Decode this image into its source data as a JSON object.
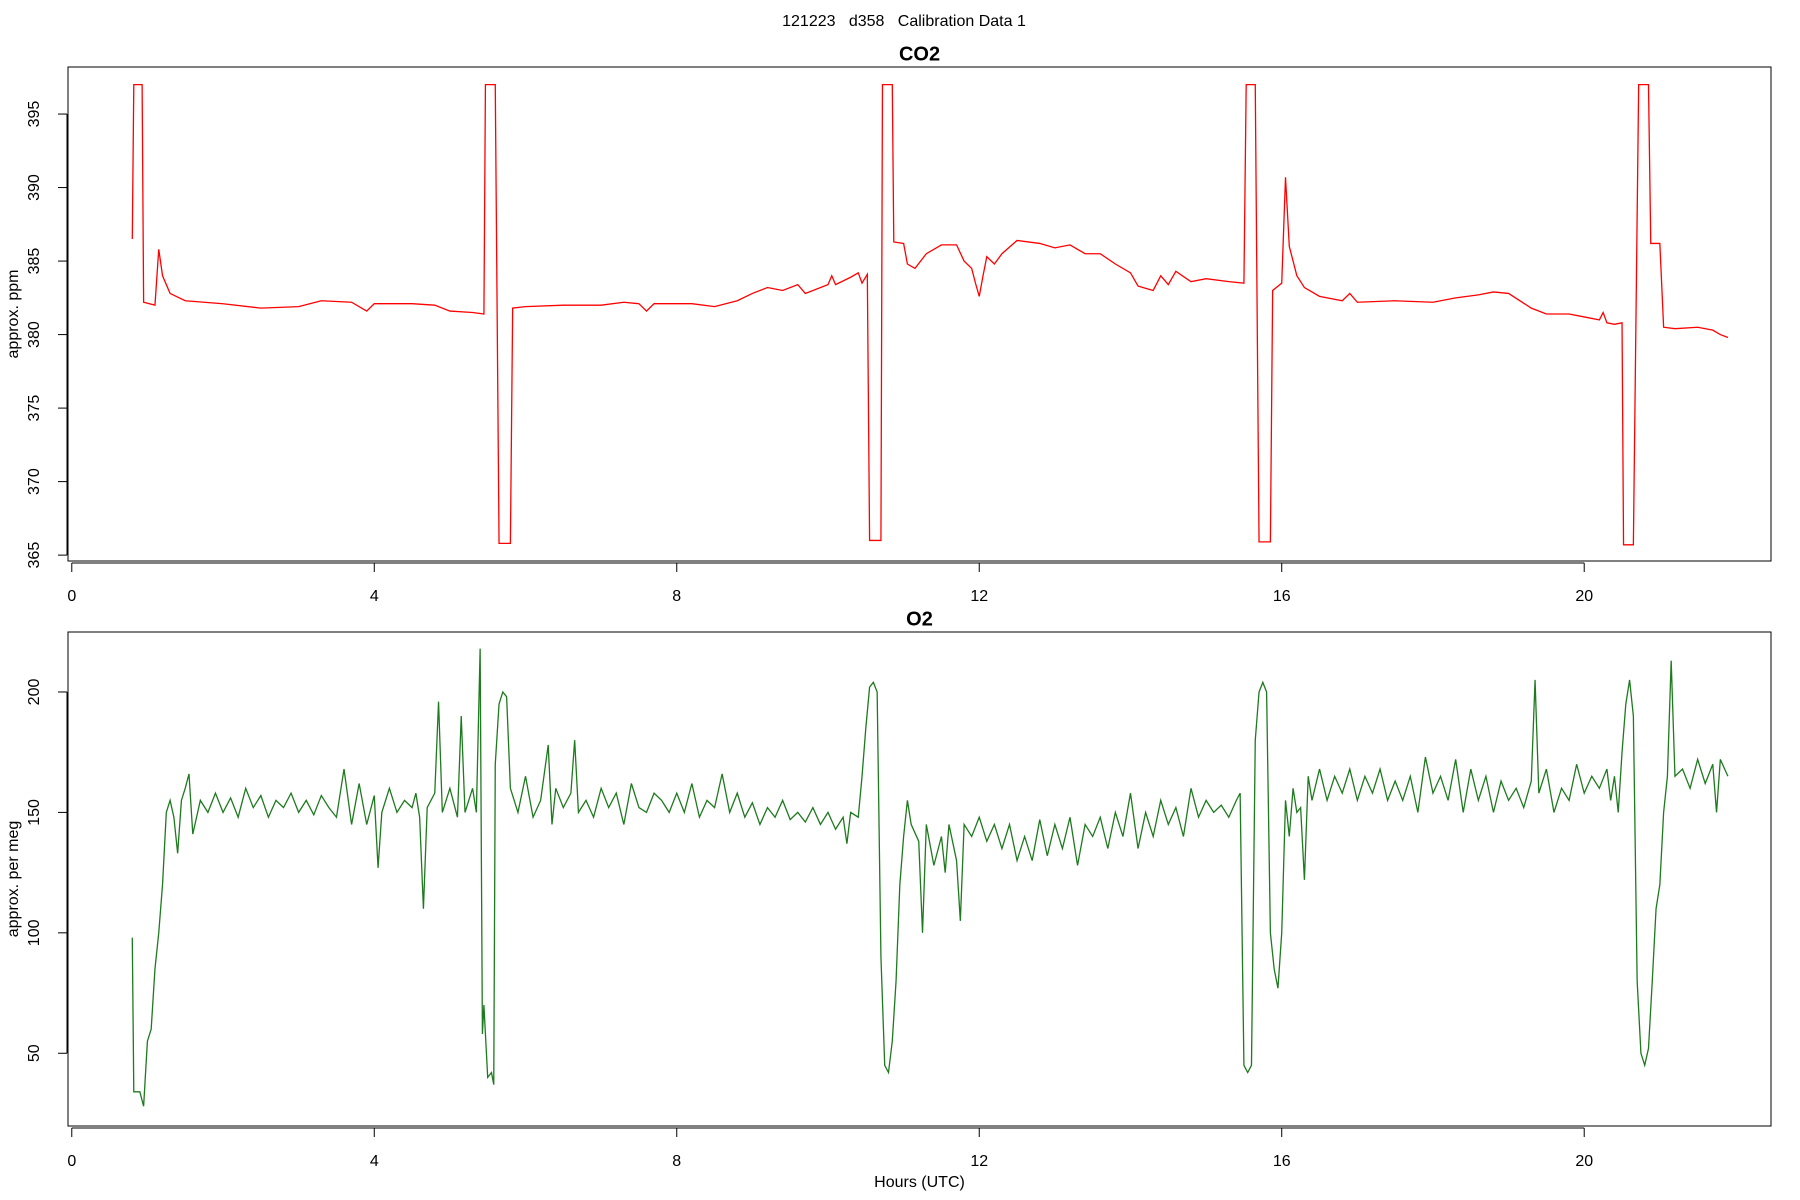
{
  "title": "121223   d358   Calibration Data 1",
  "chart_data": [
    {
      "type": "line",
      "title": "CO2",
      "ylabel": "approx. ppm",
      "color": "#ff0000",
      "xlim": [
        -0.05,
        22.47
      ],
      "ylim": [
        364.6,
        398.2
      ],
      "xticks": [
        0,
        4,
        8,
        12,
        16,
        20
      ],
      "yticks": [
        365,
        370,
        375,
        380,
        385,
        390,
        395
      ],
      "x": [
        0.8,
        0.82,
        0.93,
        0.95,
        1.1,
        1.15,
        1.2,
        1.3,
        1.5,
        2,
        2.5,
        3,
        3.3,
        3.7,
        3.9,
        4,
        4.5,
        4.8,
        5,
        5.3,
        5.45,
        5.47,
        5.6,
        5.65,
        5.8,
        5.83,
        6,
        6.5,
        7,
        7.3,
        7.5,
        7.6,
        7.7,
        8.2,
        8.5,
        8.8,
        9,
        9.2,
        9.4,
        9.6,
        9.7,
        10,
        10.05,
        10.1,
        10.3,
        10.4,
        10.45,
        10.52,
        10.55,
        10.7,
        10.72,
        10.85,
        10.87,
        11,
        11.05,
        11.15,
        11.3,
        11.5,
        11.7,
        11.8,
        11.9,
        11.95,
        12,
        12.05,
        12.1,
        12.2,
        12.3,
        12.5,
        12.8,
        13,
        13.2,
        13.4,
        13.6,
        13.8,
        14,
        14.1,
        14.3,
        14.4,
        14.5,
        14.6,
        14.8,
        15,
        15.3,
        15.5,
        15.53,
        15.65,
        15.7,
        15.85,
        15.88,
        16,
        16.05,
        16.1,
        16.2,
        16.3,
        16.5,
        16.8,
        16.9,
        17,
        17.5,
        18,
        18.3,
        18.6,
        18.8,
        19,
        19.3,
        19.5,
        19.8,
        20,
        20.2,
        20.25,
        20.3,
        20.4,
        20.5,
        20.52,
        20.65,
        20.72,
        20.85,
        20.88,
        21,
        21.05,
        21.2,
        21.5,
        21.7,
        21.8,
        21.9
      ],
      "values": [
        386.5,
        397,
        397,
        382.2,
        382,
        385.8,
        384,
        382.8,
        382.3,
        382.1,
        381.8,
        381.9,
        382.3,
        382.2,
        381.6,
        382.1,
        382.1,
        382,
        381.6,
        381.5,
        381.4,
        397,
        397,
        365.8,
        365.8,
        381.8,
        381.9,
        382,
        382,
        382.2,
        382.1,
        381.6,
        382.1,
        382.1,
        381.9,
        382.3,
        382.8,
        383.2,
        383,
        383.4,
        382.8,
        383.4,
        384,
        383.4,
        383.9,
        384.2,
        383.5,
        384.1,
        366,
        366,
        397,
        397,
        386.3,
        386.2,
        384.8,
        384.5,
        385.5,
        386.1,
        386.1,
        385,
        384.5,
        383.5,
        382.6,
        384,
        385.3,
        384.8,
        385.5,
        386.4,
        386.2,
        385.9,
        386.1,
        385.5,
        385.5,
        384.8,
        384.2,
        383.3,
        383,
        384,
        383.4,
        384.3,
        383.6,
        383.8,
        383.6,
        383.5,
        397,
        397,
        365.9,
        365.9,
        383,
        383.5,
        390.7,
        386,
        384,
        383.2,
        382.6,
        382.3,
        382.8,
        382.2,
        382.3,
        382.2,
        382.5,
        382.7,
        382.9,
        382.8,
        381.8,
        381.4,
        381.4,
        381.2,
        381,
        381.5,
        380.8,
        380.7,
        380.8,
        365.7,
        365.7,
        397,
        397,
        386.2,
        386.2,
        380.5,
        380.4,
        380.5,
        380.3,
        380,
        379.8
      ]
    },
    {
      "type": "line",
      "title": "O2",
      "ylabel": "approx. per meg",
      "xlabel": "Hours (UTC)",
      "color": "#1e7a1e",
      "xlim": [
        -0.05,
        22.47
      ],
      "ylim": [
        19.8,
        224.9
      ],
      "xticks": [
        0,
        4,
        8,
        12,
        16,
        20
      ],
      "yticks": [
        50,
        100,
        150,
        200
      ],
      "x": [
        0.8,
        0.82,
        0.9,
        0.95,
        1.0,
        1.05,
        1.1,
        1.15,
        1.2,
        1.25,
        1.3,
        1.35,
        1.4,
        1.45,
        1.5,
        1.55,
        1.6,
        1.7,
        1.8,
        1.9,
        2.0,
        2.1,
        2.2,
        2.3,
        2.4,
        2.5,
        2.6,
        2.7,
        2.8,
        2.9,
        3.0,
        3.1,
        3.2,
        3.3,
        3.4,
        3.5,
        3.6,
        3.7,
        3.8,
        3.9,
        4.0,
        4.05,
        4.1,
        4.2,
        4.3,
        4.4,
        4.5,
        4.55,
        4.6,
        4.65,
        4.7,
        4.8,
        4.85,
        4.9,
        5.0,
        5.1,
        5.15,
        5.2,
        5.3,
        5.35,
        5.4,
        5.43,
        5.45,
        5.5,
        5.55,
        5.58,
        5.6,
        5.65,
        5.7,
        5.75,
        5.8,
        5.9,
        6.0,
        6.1,
        6.2,
        6.3,
        6.35,
        6.4,
        6.5,
        6.6,
        6.65,
        6.7,
        6.8,
        6.9,
        7.0,
        7.1,
        7.2,
        7.3,
        7.4,
        7.5,
        7.6,
        7.7,
        7.8,
        7.9,
        8.0,
        8.1,
        8.2,
        8.3,
        8.4,
        8.5,
        8.6,
        8.7,
        8.8,
        8.9,
        9.0,
        9.1,
        9.2,
        9.3,
        9.4,
        9.5,
        9.6,
        9.7,
        9.8,
        9.9,
        10.0,
        10.1,
        10.2,
        10.25,
        10.3,
        10.4,
        10.45,
        10.5,
        10.55,
        10.6,
        10.65,
        10.7,
        10.75,
        10.8,
        10.85,
        10.9,
        10.95,
        11.0,
        11.05,
        11.1,
        11.2,
        11.25,
        11.3,
        11.4,
        11.5,
        11.55,
        11.6,
        11.7,
        11.75,
        11.8,
        11.9,
        12.0,
        12.1,
        12.2,
        12.3,
        12.4,
        12.5,
        12.6,
        12.7,
        12.8,
        12.9,
        13.0,
        13.1,
        13.2,
        13.3,
        13.4,
        13.5,
        13.6,
        13.7,
        13.8,
        13.9,
        14.0,
        14.1,
        14.2,
        14.3,
        14.4,
        14.5,
        14.6,
        14.7,
        14.8,
        14.9,
        15.0,
        15.1,
        15.2,
        15.3,
        15.4,
        15.45,
        15.5,
        15.55,
        15.6,
        15.65,
        15.7,
        15.75,
        15.8,
        15.85,
        15.9,
        15.95,
        16.0,
        16.05,
        16.1,
        16.15,
        16.2,
        16.25,
        16.3,
        16.35,
        16.4,
        16.5,
        16.6,
        16.7,
        16.8,
        16.9,
        17.0,
        17.1,
        17.2,
        17.3,
        17.4,
        17.5,
        17.6,
        17.7,
        17.8,
        17.9,
        18.0,
        18.1,
        18.2,
        18.3,
        18.4,
        18.5,
        18.6,
        18.7,
        18.8,
        18.9,
        19.0,
        19.1,
        19.2,
        19.3,
        19.35,
        19.4,
        19.5,
        19.6,
        19.7,
        19.8,
        19.9,
        20.0,
        20.1,
        20.2,
        20.3,
        20.35,
        20.4,
        20.45,
        20.5,
        20.55,
        20.6,
        20.65,
        20.7,
        20.75,
        20.8,
        20.85,
        20.9,
        20.95,
        21.0,
        21.05,
        21.1,
        21.15,
        21.2,
        21.3,
        21.4,
        21.5,
        21.6,
        21.7,
        21.75,
        21.8,
        21.9
      ],
      "values": [
        98,
        34,
        34,
        28,
        55,
        60,
        85,
        100,
        120,
        150,
        155,
        148,
        133,
        155,
        160,
        166,
        141,
        155,
        150,
        158,
        150,
        156,
        148,
        160,
        152,
        157,
        148,
        155,
        152,
        158,
        150,
        155,
        149,
        157,
        152,
        148,
        168,
        145,
        162,
        145,
        157,
        127,
        150,
        160,
        150,
        155,
        152,
        158,
        148,
        110,
        152,
        158,
        196,
        150,
        160,
        148,
        190,
        150,
        160,
        150,
        218,
        58,
        70,
        40,
        42,
        37,
        170,
        195,
        200,
        198,
        160,
        150,
        165,
        148,
        155,
        178,
        145,
        160,
        152,
        158,
        180,
        150,
        155,
        148,
        160,
        152,
        158,
        145,
        162,
        152,
        150,
        158,
        155,
        150,
        158,
        150,
        162,
        148,
        155,
        152,
        166,
        150,
        158,
        148,
        154,
        145,
        152,
        148,
        155,
        147,
        150,
        146,
        152,
        145,
        150,
        143,
        148,
        137,
        150,
        148,
        165,
        185,
        202,
        204,
        200,
        90,
        45,
        42,
        55,
        80,
        120,
        140,
        155,
        145,
        138,
        100,
        145,
        128,
        140,
        125,
        145,
        130,
        105,
        145,
        140,
        148,
        138,
        145,
        135,
        145,
        130,
        140,
        130,
        147,
        132,
        145,
        135,
        148,
        128,
        145,
        140,
        148,
        135,
        150,
        140,
        158,
        135,
        150,
        140,
        155,
        145,
        152,
        140,
        160,
        148,
        155,
        150,
        153,
        148,
        155,
        158,
        45,
        42,
        45,
        180,
        200,
        204,
        200,
        100,
        85,
        77,
        100,
        155,
        140,
        160,
        150,
        152,
        122,
        165,
        155,
        168,
        155,
        165,
        158,
        168,
        155,
        165,
        158,
        168,
        155,
        163,
        155,
        165,
        150,
        173,
        158,
        165,
        155,
        172,
        150,
        168,
        155,
        165,
        150,
        163,
        155,
        160,
        152,
        163,
        205,
        158,
        168,
        150,
        160,
        155,
        170,
        158,
        165,
        160,
        168,
        155,
        165,
        150,
        175,
        195,
        205,
        190,
        80,
        50,
        45,
        52,
        80,
        110,
        120,
        150,
        165,
        213,
        165,
        168,
        160,
        172,
        162,
        170,
        150,
        172,
        165
      ]
    }
  ]
}
